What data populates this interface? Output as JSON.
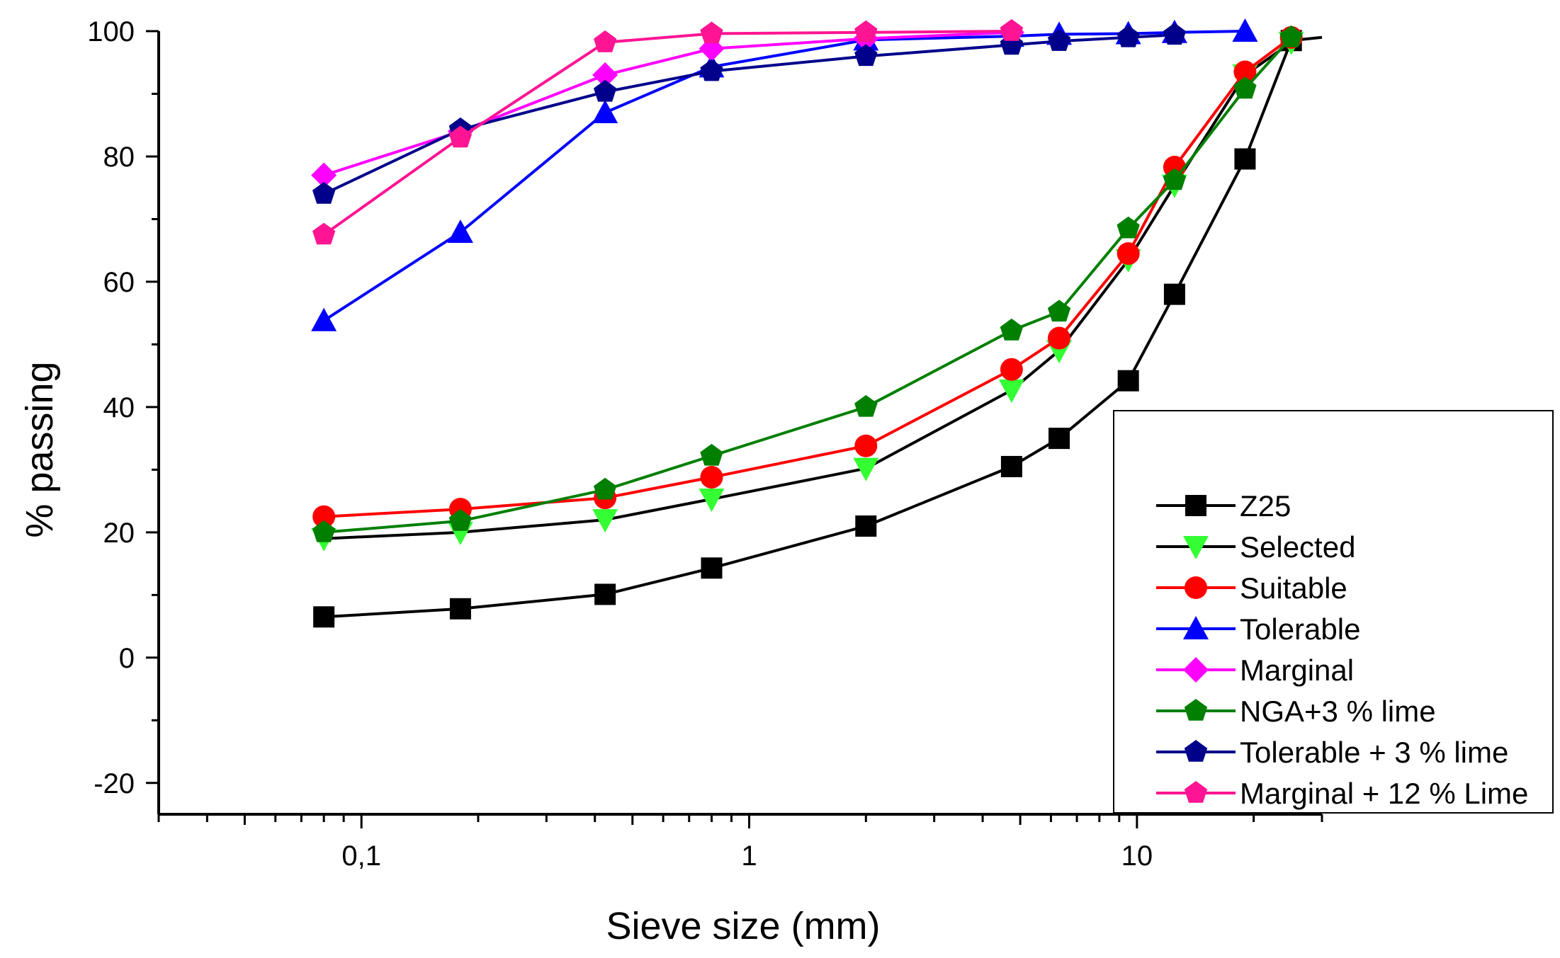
{
  "chart_data": {
    "type": "line",
    "title": "",
    "xlabel": "Sieve size (mm)",
    "ylabel": "% passing",
    "xscale": "log",
    "xlim": [
      0.03,
      30
    ],
    "ylim": [
      -25,
      100
    ],
    "x_major_ticks": [
      0.1,
      1,
      10
    ],
    "x_tick_labels": [
      "0,1",
      "1",
      "10"
    ],
    "y_ticks": [
      -20,
      0,
      20,
      40,
      60,
      80,
      100
    ],
    "y_tick_labels": [
      "-20",
      "0",
      "20",
      "40",
      "60",
      "80",
      "100"
    ],
    "grid": false,
    "legend_position": "bottom-right",
    "series": [
      {
        "name": "Z25",
        "marker": "square",
        "line_color": "#000000",
        "marker_color": "#000000",
        "x": [
          0.08,
          0.18,
          0.425,
          0.8,
          2,
          4.75,
          6.3,
          9.5,
          12.5,
          19,
          25,
          30
        ],
        "y": [
          6.5,
          7.8,
          10.1,
          14.3,
          21,
          30.5,
          35,
          44.2,
          58,
          79.6,
          98.5,
          99
        ]
      },
      {
        "name": "Selected",
        "marker": "triangle-down",
        "line_color": "#000000",
        "marker_color": "#33ff33",
        "x": [
          0.08,
          0.18,
          0.425,
          0.8,
          2,
          4.75,
          6.3,
          9.5,
          12.5,
          19,
          25
        ],
        "y": [
          19,
          20,
          22,
          25.3,
          30.2,
          42.7,
          49,
          63.5,
          75.4,
          93,
          98.2
        ]
      },
      {
        "name": "Suitable",
        "marker": "circle",
        "line_color": "#ff0000",
        "marker_color": "#ff0000",
        "x": [
          0.08,
          0.18,
          0.425,
          0.8,
          2,
          4.75,
          6.3,
          9.5,
          12.5,
          19,
          25
        ],
        "y": [
          22.5,
          23.7,
          25.5,
          28.8,
          33.8,
          46,
          51,
          64.5,
          78.3,
          93.5,
          99
        ]
      },
      {
        "name": "Tolerable",
        "marker": "triangle-up",
        "line_color": "#0000ff",
        "marker_color": "#0000ff",
        "x": [
          0.08,
          0.18,
          0.425,
          0.8,
          2,
          4.75,
          6.3,
          9.5,
          12.5,
          19
        ],
        "y": [
          53.8,
          67.9,
          87,
          94.3,
          98.6,
          99.2,
          99.5,
          99.6,
          99.8,
          100
        ]
      },
      {
        "name": "Marginal",
        "marker": "diamond",
        "line_color": "#ff00ff",
        "marker_color": "#ff00ff",
        "x": [
          0.08,
          0.18,
          0.425,
          0.8,
          2,
          4.75
        ],
        "y": [
          77,
          84,
          93,
          97.2,
          98.8,
          99.8
        ]
      },
      {
        "name": "NGA+3 % lime",
        "marker": "pentagon",
        "line_color": "#007f00",
        "marker_color": "#007f00",
        "x": [
          0.08,
          0.18,
          0.425,
          0.8,
          2,
          4.75,
          6.3,
          9.5,
          12.5,
          19,
          25
        ],
        "y": [
          20,
          21.8,
          26.8,
          32.2,
          40,
          52.2,
          55.2,
          68.5,
          76.2,
          90.8,
          99
        ]
      },
      {
        "name": "Tolerable + 3 % lime",
        "marker": "pentagon",
        "line_color": "#00008b",
        "marker_color": "#00008b",
        "x": [
          0.08,
          0.18,
          0.425,
          0.8,
          2,
          4.75,
          6.3,
          9.5,
          12.5
        ],
        "y": [
          74,
          84.3,
          90.3,
          93.6,
          96,
          97.8,
          98.4,
          99,
          99.4
        ]
      },
      {
        "name": "Marginal + 12 % Lime",
        "marker": "pentagon",
        "line_color": "#ff1493",
        "marker_color": "#ff1493",
        "x": [
          0.08,
          0.18,
          0.425,
          0.8,
          2,
          4.75
        ],
        "y": [
          67.5,
          83,
          98.2,
          99.6,
          99.8,
          100
        ]
      }
    ]
  }
}
